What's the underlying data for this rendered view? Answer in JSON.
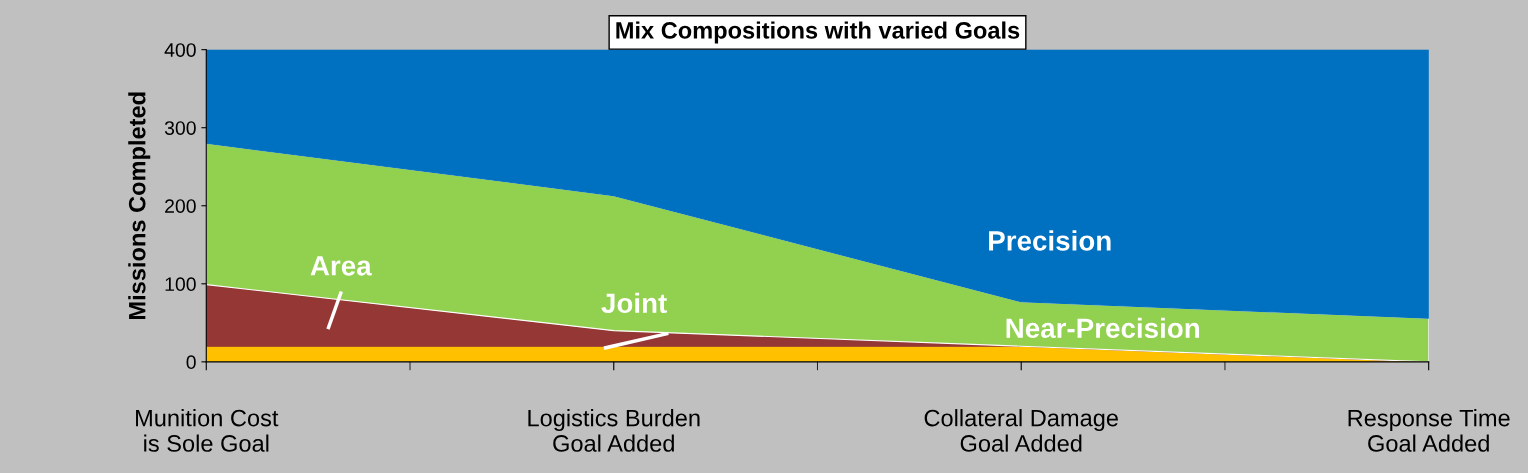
{
  "chart_data": {
    "type": "area",
    "stacked": true,
    "title": "Mix Compositions with varied Goals",
    "ylabel": "Missions Completed",
    "categories": [
      "Munition Cost\nis Sole Goal",
      "Logistics Burden\nGoal Added",
      "Collateral Damage\nGoal Added",
      "Response Time\nGoal Added"
    ],
    "series": [
      {
        "name": "Joint",
        "color": "#ffc000",
        "values": [
          20,
          20,
          20,
          0
        ]
      },
      {
        "name": "Area",
        "color": "#953735",
        "values": [
          79,
          20,
          0,
          0
        ]
      },
      {
        "name": "Near-Precision",
        "color": "#92d050",
        "values": [
          181,
          173,
          57,
          56
        ]
      },
      {
        "name": "Precision",
        "color": "#0070c0",
        "values": [
          120,
          187,
          323,
          344
        ]
      }
    ],
    "ylim": [
      0,
      400
    ],
    "yticks": [
      0,
      100,
      200,
      300,
      400
    ],
    "grid": false,
    "legend": false
  }
}
